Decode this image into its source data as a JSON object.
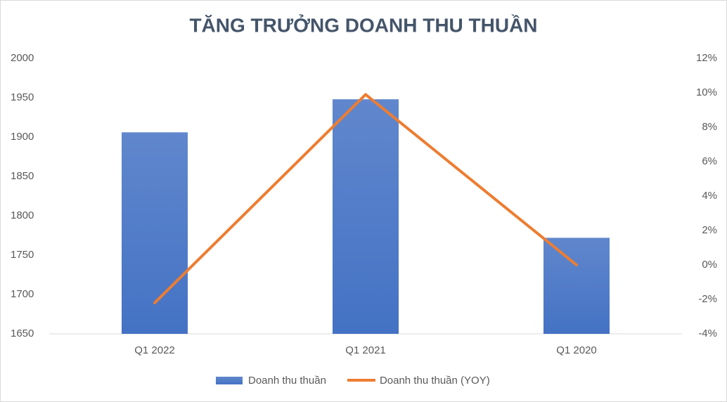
{
  "chart_data": {
    "type": "bar",
    "title": "TĂNG TRƯỞNG DOANH THU THUẦN",
    "categories": [
      "Q1 2022",
      "Q1 2021",
      "Q1 2020"
    ],
    "series": [
      {
        "name": "Doanh thu thuần",
        "type": "bar",
        "color": "#4472c4",
        "values": [
          1906,
          1948,
          1772
        ]
      },
      {
        "name": "Doanh thu thuần (YOY)",
        "type": "line",
        "color": "#ed7d31",
        "axis": "y2",
        "values": [
          -2.2,
          9.9,
          0
        ]
      }
    ],
    "ylim": [
      1650,
      2000
    ],
    "yticks": [
      1650,
      1700,
      1750,
      1800,
      1850,
      1900,
      1950,
      2000
    ],
    "y2lim": [
      -4,
      12
    ],
    "y2ticks": [
      {
        "value": -4,
        "label": "-4%"
      },
      {
        "value": -2,
        "label": "-2%"
      },
      {
        "value": 0,
        "label": "0%"
      },
      {
        "value": 2,
        "label": "2%"
      },
      {
        "value": 4,
        "label": "4%"
      },
      {
        "value": 6,
        "label": "6%"
      },
      {
        "value": 8,
        "label": "8%"
      },
      {
        "value": 10,
        "label": "10%"
      },
      {
        "value": 12,
        "label": "12%"
      }
    ],
    "legend": "bottom"
  }
}
